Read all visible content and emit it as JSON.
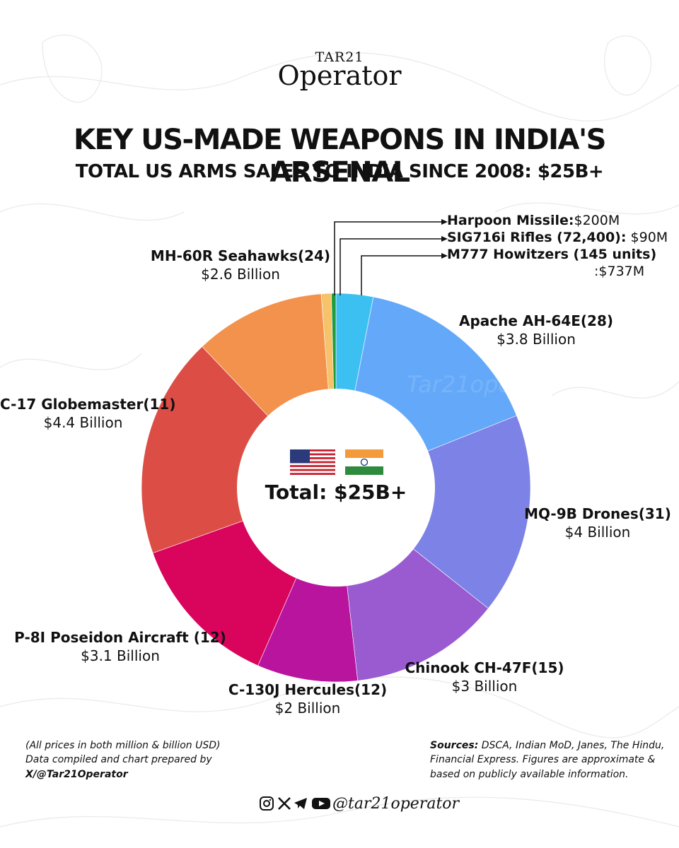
{
  "brand": {
    "top": "TAR21",
    "main": "Operator",
    "handle": "@tar21operator",
    "watermark": "Tar21operator"
  },
  "header": {
    "title": "KEY US-MADE WEAPONS IN INDIA'S ARSENAL",
    "subtitle": "TOTAL US ARMS SALES TO INDIA SINCE 2008: $25B+"
  },
  "center": {
    "total": "Total: $25B+"
  },
  "labels": {
    "harpoon": {
      "name": "Harpoon Missile:",
      "value": "$200M"
    },
    "sig": {
      "name": "SIG716i Rifles (72,400):",
      "value": "$90M"
    },
    "m777": {
      "name": "M777 Howitzers (145 units)",
      "value": ":$737M"
    },
    "mh60r": {
      "name": "MH-60R Seahawks(24)",
      "value": "$2.6 Billion"
    },
    "apache": {
      "name": "Apache AH-64E(28)",
      "value": "$3.8 Billion"
    },
    "c17": {
      "name": "C-17 Globemaster(11)",
      "value": "$4.4 Billion"
    },
    "mq9b": {
      "name": "MQ-9B Drones(31)",
      "value": "$4 Billion"
    },
    "p8i": {
      "name": "P-8I Poseidon Aircraft (12)",
      "value": "$3.1 Billion"
    },
    "chinook": {
      "name": "Chinook CH-47F(15)",
      "value": "$3 Billion"
    },
    "c130j": {
      "name": "C-130J Hercules(12)",
      "value": "$2 Billion"
    }
  },
  "footer": {
    "left_line1": "(All prices in both million & billion USD)",
    "left_line2": "Data compiled and chart prepared by",
    "left_line3": "X/@Tar21Operator",
    "sources_label": "Sources:",
    "sources_text": "DSCA, Indian MoD, Janes, The Hindu, Financial Express. Figures are approximate & based on publicly available information."
  },
  "icons": [
    "instagram-icon",
    "x-icon",
    "telegram-icon",
    "youtube-icon",
    "us-flag-icon",
    "india-flag-icon"
  ],
  "chart_data": {
    "type": "pie",
    "unit": "USD million",
    "categories": [
      "M777 Howitzers",
      "Apache AH-64E",
      "MQ-9B Drones",
      "Chinook CH-47F",
      "C-130J Hercules",
      "P-8I Poseidon Aircraft",
      "C-17 Globemaster",
      "MH-60R Seahawks",
      "Harpoon Missile",
      "SIG716i Rifles"
    ],
    "values": [
      737,
      3800,
      4000,
      3000,
      2000,
      3100,
      4400,
      2600,
      200,
      90
    ],
    "colors": [
      "#3cc0f2",
      "#64a9f9",
      "#7d82e6",
      "#9a5bd1",
      "#b8149e",
      "#d9045b",
      "#dc4e45",
      "#f2924d",
      "#f6c26a",
      "#1f9c3d"
    ]
  }
}
